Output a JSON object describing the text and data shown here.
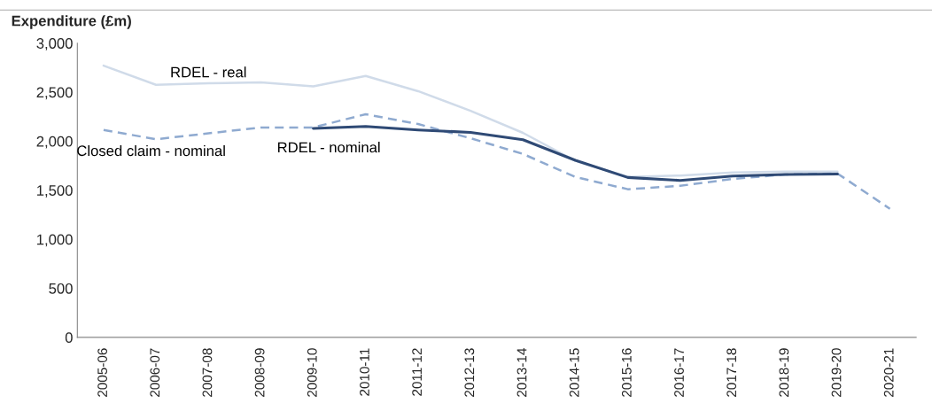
{
  "chart_data": {
    "type": "line",
    "ylabel": "Expenditure (£m)",
    "categories": [
      "2005-06",
      "2006-07",
      "2007-08",
      "2008-09",
      "2009-10",
      "2010-11",
      "2011-12",
      "2012-13",
      "2013-14",
      "2014-15",
      "2015-16",
      "2016-17",
      "2017-18",
      "2018-19",
      "2019-20",
      "2020-21"
    ],
    "series": [
      {
        "name": "RDEL - real",
        "color": "#d0dbe9",
        "line_style": "solid",
        "values": [
          2770,
          2575,
          2590,
          2600,
          2560,
          2665,
          2510,
          2310,
          2085,
          1800,
          1635,
          1650,
          1680,
          1690,
          1690,
          null
        ]
      },
      {
        "name": "Closed claim - nominal",
        "color": "#8faad0",
        "line_style": "dashed",
        "values": [
          2115,
          2020,
          2080,
          2140,
          2140,
          2275,
          2175,
          2030,
          1870,
          1635,
          1510,
          1545,
          1615,
          1660,
          1670,
          1310
        ]
      },
      {
        "name": "RDEL - nominal",
        "color": "#2f4a75",
        "line_style": "solid",
        "values": [
          null,
          null,
          null,
          null,
          2130,
          2150,
          2115,
          2090,
          2015,
          1805,
          1630,
          1600,
          1645,
          1660,
          1665,
          null
        ]
      }
    ],
    "ylim": [
      0,
      3000
    ],
    "yticks": [
      {
        "value": 0,
        "label": "0"
      },
      {
        "value": 500,
        "label": "500"
      },
      {
        "value": 1000,
        "label": "1,000"
      },
      {
        "value": 1500,
        "label": "1,500"
      },
      {
        "value": 2000,
        "label": "2,000"
      },
      {
        "value": 2500,
        "label": "2,500"
      },
      {
        "value": 3000,
        "label": "3,000"
      }
    ],
    "grid": false,
    "legend": false
  }
}
